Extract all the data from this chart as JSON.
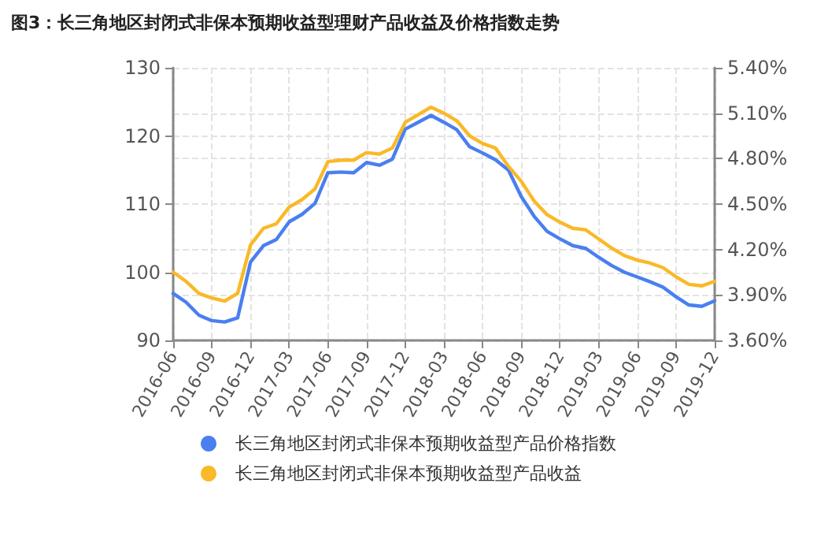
{
  "chart_data": {
    "type": "line",
    "title": "图3：长三角地区封闭式非保本预期收益型理财产品收益及价格指数走势",
    "categories": [
      "2016-06",
      null,
      null,
      "2016-09",
      null,
      null,
      "2016-12",
      null,
      null,
      "2017-03",
      null,
      null,
      "2017-06",
      null,
      null,
      "2017-09",
      null,
      null,
      "2017-12",
      null,
      null,
      "2018-03",
      null,
      null,
      "2018-06",
      null,
      null,
      "2018-09",
      null,
      null,
      "2018-12",
      null,
      null,
      "2019-03",
      null,
      null,
      "2019-06",
      null,
      null,
      "2019-09",
      null,
      null,
      "2019-12"
    ],
    "series": [
      {
        "name": "长三角地区封闭式非保本预期收益型产品价格指数",
        "color": "#4a7ff0",
        "values": [
          96.9,
          95.6,
          93.7,
          92.9,
          92.7,
          93.3,
          101.5,
          103.9,
          104.8,
          107.4,
          108.5,
          110.1,
          114.6,
          114.7,
          114.6,
          116.1,
          115.7,
          116.6,
          121.0,
          122.0,
          123.0,
          122.0,
          120.9,
          118.4,
          117.5,
          116.5,
          115.0,
          111.1,
          108.2,
          106.0,
          104.9,
          103.9,
          103.5,
          102.2,
          101.0,
          100.0,
          99.3,
          98.6,
          97.8,
          96.4,
          95.2,
          95.0,
          95.8
        ]
      },
      {
        "name": "长三角地区封闭式非保本预期收益型产品收益",
        "color": "#f9b928",
        "axis": "y2",
        "values": [
          4.05,
          3.99,
          3.91,
          3.88,
          3.86,
          3.91,
          4.23,
          4.34,
          4.37,
          4.48,
          4.53,
          4.6,
          4.78,
          4.79,
          4.79,
          4.84,
          4.83,
          4.87,
          5.04,
          5.09,
          5.14,
          5.1,
          5.05,
          4.95,
          4.9,
          4.87,
          4.75,
          4.65,
          4.52,
          4.43,
          4.38,
          4.34,
          4.33,
          4.27,
          4.21,
          4.16,
          4.13,
          4.11,
          4.08,
          4.02,
          3.97,
          3.96,
          3.99
        ]
      }
    ],
    "ylim": [
      90,
      130
    ],
    "yticks": [
      90,
      100,
      110,
      120,
      130
    ],
    "y2lim": [
      3.6,
      5.4
    ],
    "y2ticks": [
      {
        "value": 3.6,
        "label": "3.60%"
      },
      {
        "value": 3.9,
        "label": "3.90%"
      },
      {
        "value": 4.2,
        "label": "4.20%"
      },
      {
        "value": 4.5,
        "label": "4.50%"
      },
      {
        "value": 4.8,
        "label": "4.80%"
      },
      {
        "value": 5.1,
        "label": "5.10%"
      },
      {
        "value": 5.4,
        "label": "5.40%"
      }
    ],
    "grid": true,
    "legend": "bottom",
    "marker": "none",
    "line_style": "solid"
  }
}
